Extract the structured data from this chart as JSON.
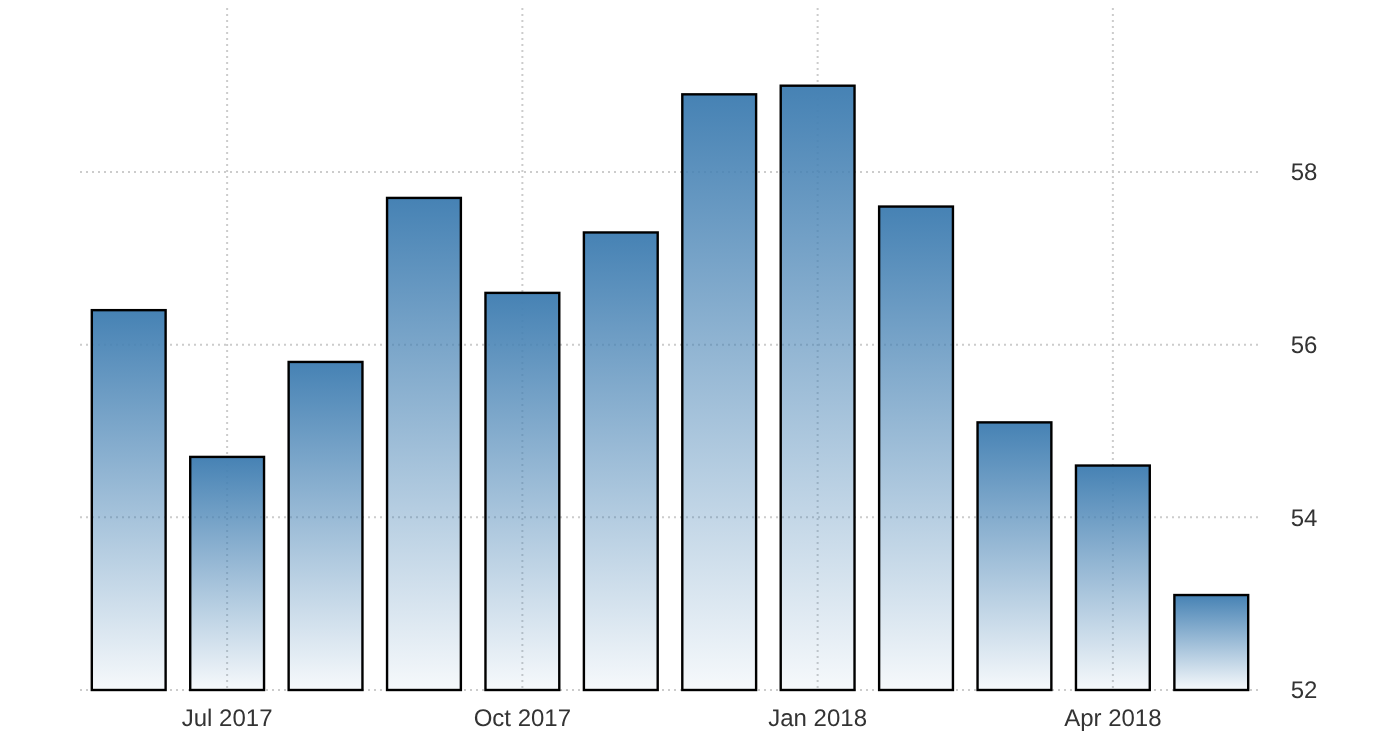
{
  "chart_data": {
    "type": "bar",
    "categories": [
      null,
      "Jul 2017",
      null,
      null,
      "Oct 2017",
      null,
      null,
      "Jan 2018",
      null,
      null,
      "Apr 2018",
      null
    ],
    "values": [
      56.4,
      54.7,
      55.8,
      57.7,
      56.6,
      57.3,
      58.9,
      59.0,
      57.6,
      55.1,
      54.6,
      53.1
    ],
    "color": "#4682b4",
    "ylim": [
      52,
      59.9
    ],
    "yticks": [
      52,
      54,
      56,
      58
    ],
    "grid": true
  }
}
